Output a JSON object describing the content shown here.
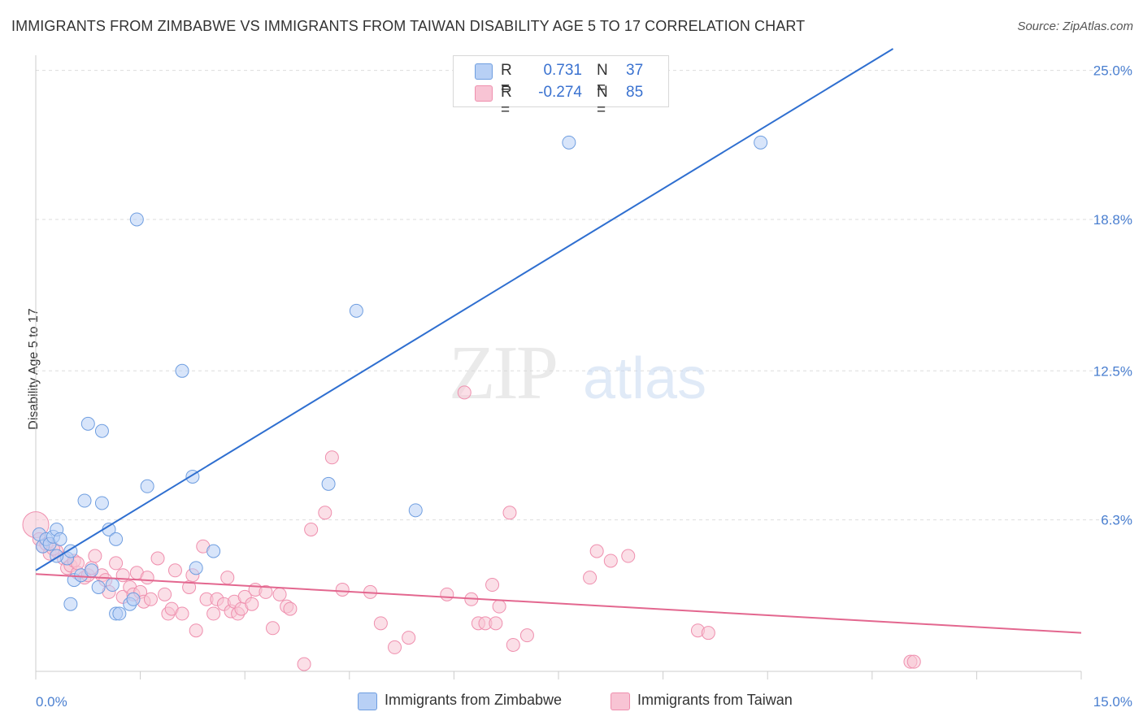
{
  "title": "IMMIGRANTS FROM ZIMBABWE VS IMMIGRANTS FROM TAIWAN DISABILITY AGE 5 TO 17 CORRELATION CHART",
  "source": "Source: ZipAtlas.com",
  "watermark": {
    "zip": "ZIP",
    "atlas": "atlas"
  },
  "legend": {
    "zimbabwe": {
      "r_label": "R =",
      "r_value": "0.731",
      "n_label": "N =",
      "n_value": "37"
    },
    "taiwan": {
      "r_label": "R =",
      "r_value": "-0.274",
      "n_label": "N =",
      "n_value": "85"
    }
  },
  "colors": {
    "blue_fill": "#b8d0f5",
    "blue_stroke": "#6f9ee0",
    "blue_line": "#2f6fd0",
    "pink_fill": "#f8c4d4",
    "pink_stroke": "#ef8fae",
    "pink_line": "#e3678f",
    "value_text": "#3a72d0",
    "grid": "#dddddd"
  },
  "chart_data": {
    "type": "scatter",
    "title": "IMMIGRANTS FROM ZIMBABWE VS IMMIGRANTS FROM TAIWAN DISABILITY AGE 5 TO 17 CORRELATION CHART",
    "xlabel": "",
    "ylabel": "Disability Age 5 to 17",
    "xlim": [
      0,
      15
    ],
    "ylim": [
      0,
      25.9
    ],
    "x_tick_labels": [
      "0.0%",
      "15.0%"
    ],
    "y_ticks": [
      6.3,
      12.5,
      18.8,
      25.0
    ],
    "y_tick_labels": [
      "6.3%",
      "12.5%",
      "18.8%",
      "25.0%"
    ],
    "series": [
      {
        "name": "Immigrants from Zimbabwe",
        "color": "blue",
        "trend": {
          "x": [
            0,
            12.3
          ],
          "y": [
            4.2,
            25.9
          ]
        },
        "points": [
          [
            0.05,
            5.7
          ],
          [
            0.1,
            5.2
          ],
          [
            0.15,
            5.5
          ],
          [
            0.2,
            5.3
          ],
          [
            0.25,
            5.6
          ],
          [
            0.3,
            5.9
          ],
          [
            0.35,
            5.5
          ],
          [
            0.45,
            4.7
          ],
          [
            0.5,
            5.0
          ],
          [
            0.5,
            2.8
          ],
          [
            0.55,
            3.8
          ],
          [
            0.65,
            4.0
          ],
          [
            0.75,
            10.3
          ],
          [
            0.7,
            7.1
          ],
          [
            0.8,
            4.2
          ],
          [
            0.9,
            3.5
          ],
          [
            0.95,
            7.0
          ],
          [
            0.95,
            10.0
          ],
          [
            1.05,
            5.9
          ],
          [
            1.1,
            3.6
          ],
          [
            1.15,
            5.5
          ],
          [
            1.15,
            2.4
          ],
          [
            1.2,
            2.4
          ],
          [
            1.35,
            2.8
          ],
          [
            1.4,
            3.0
          ],
          [
            1.45,
            18.8
          ],
          [
            1.6,
            7.7
          ],
          [
            2.1,
            12.5
          ],
          [
            2.25,
            8.1
          ],
          [
            2.3,
            4.3
          ],
          [
            2.55,
            5.0
          ],
          [
            4.2,
            7.8
          ],
          [
            4.6,
            15.0
          ],
          [
            5.45,
            6.7
          ],
          [
            7.65,
            22.0
          ],
          [
            10.4,
            22.0
          ],
          [
            0.3,
            4.8
          ]
        ]
      },
      {
        "name": "Immigrants from Taiwan",
        "color": "pink",
        "trend": {
          "x": [
            0,
            15
          ],
          "y": [
            4.05,
            1.6
          ]
        },
        "points": [
          [
            0.0,
            6.1
          ],
          [
            0.05,
            5.5
          ],
          [
            0.1,
            5.2
          ],
          [
            0.15,
            5.3
          ],
          [
            0.2,
            4.9
          ],
          [
            0.3,
            5.0
          ],
          [
            0.4,
            4.7
          ],
          [
            0.45,
            4.3
          ],
          [
            0.5,
            4.4
          ],
          [
            0.55,
            4.6
          ],
          [
            0.6,
            4.1
          ],
          [
            0.7,
            3.9
          ],
          [
            0.75,
            4.0
          ],
          [
            0.8,
            4.3
          ],
          [
            0.85,
            4.8
          ],
          [
            0.95,
            4.0
          ],
          [
            1.0,
            3.8
          ],
          [
            1.05,
            3.3
          ],
          [
            1.15,
            4.5
          ],
          [
            1.25,
            3.1
          ],
          [
            1.25,
            4.0
          ],
          [
            1.35,
            3.5
          ],
          [
            1.4,
            3.2
          ],
          [
            1.45,
            4.1
          ],
          [
            1.5,
            3.3
          ],
          [
            1.55,
            2.9
          ],
          [
            1.6,
            3.9
          ],
          [
            1.65,
            3.0
          ],
          [
            1.75,
            4.7
          ],
          [
            1.85,
            3.2
          ],
          [
            1.9,
            2.4
          ],
          [
            1.95,
            2.6
          ],
          [
            2.0,
            4.2
          ],
          [
            2.1,
            2.4
          ],
          [
            2.2,
            3.5
          ],
          [
            2.25,
            4.0
          ],
          [
            2.3,
            1.7
          ],
          [
            2.4,
            5.2
          ],
          [
            2.45,
            3.0
          ],
          [
            2.55,
            2.4
          ],
          [
            2.6,
            3.0
          ],
          [
            2.7,
            2.8
          ],
          [
            2.75,
            3.9
          ],
          [
            2.8,
            2.5
          ],
          [
            2.85,
            2.9
          ],
          [
            2.9,
            2.4
          ],
          [
            2.95,
            2.6
          ],
          [
            3.0,
            3.1
          ],
          [
            3.1,
            2.8
          ],
          [
            3.15,
            3.4
          ],
          [
            3.3,
            3.3
          ],
          [
            3.4,
            1.8
          ],
          [
            3.5,
            3.2
          ],
          [
            3.6,
            2.7
          ],
          [
            3.65,
            2.6
          ],
          [
            3.85,
            0.3
          ],
          [
            3.95,
            5.9
          ],
          [
            4.15,
            6.6
          ],
          [
            4.25,
            8.9
          ],
          [
            4.4,
            3.4
          ],
          [
            4.8,
            3.3
          ],
          [
            4.95,
            2.0
          ],
          [
            5.15,
            1.0
          ],
          [
            5.35,
            1.4
          ],
          [
            5.9,
            3.2
          ],
          [
            6.15,
            11.6
          ],
          [
            6.25,
            3.0
          ],
          [
            6.35,
            2.0
          ],
          [
            6.45,
            2.0
          ],
          [
            6.55,
            3.6
          ],
          [
            6.6,
            2.0
          ],
          [
            6.65,
            2.7
          ],
          [
            6.8,
            6.6
          ],
          [
            6.85,
            1.1
          ],
          [
            7.05,
            1.5
          ],
          [
            7.95,
            3.9
          ],
          [
            8.05,
            5.0
          ],
          [
            8.25,
            4.6
          ],
          [
            8.5,
            4.8
          ],
          [
            9.5,
            1.7
          ],
          [
            9.65,
            1.6
          ],
          [
            12.55,
            0.4
          ],
          [
            12.6,
            0.4
          ],
          [
            0.25,
            5.1
          ],
          [
            0.6,
            4.5
          ]
        ]
      }
    ]
  },
  "bottom_legend": {
    "zimbabwe": "Immigrants from Zimbabwe",
    "taiwan": "Immigrants from Taiwan"
  }
}
